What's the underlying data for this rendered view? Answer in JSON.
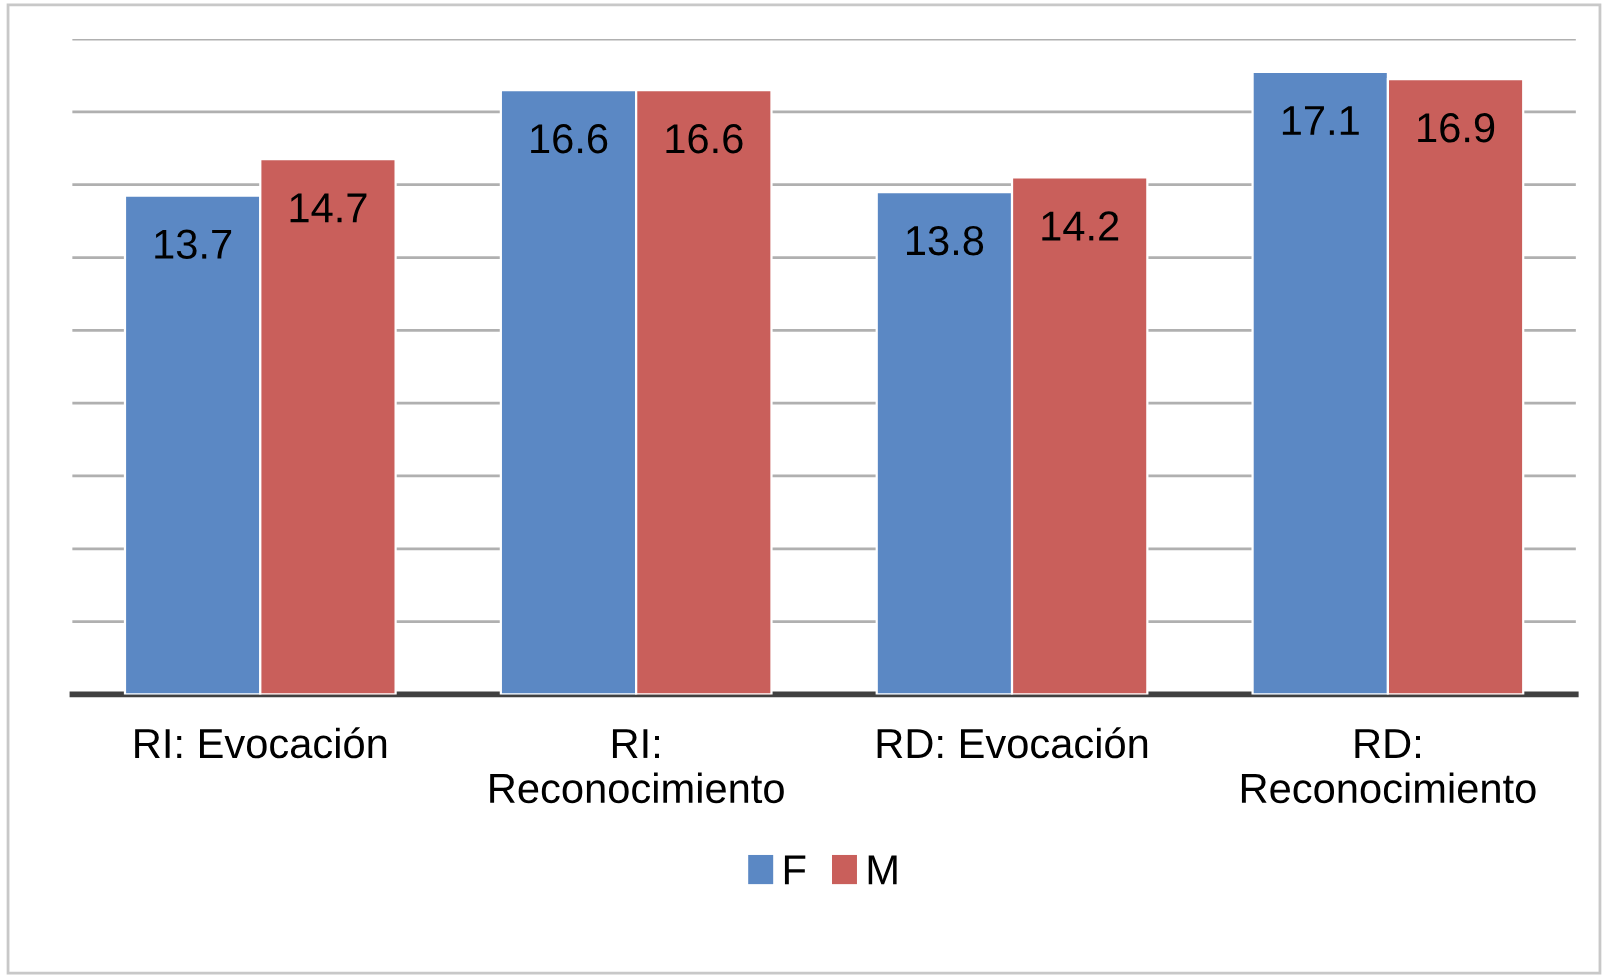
{
  "chart_data": {
    "type": "bar",
    "categories": [
      "RI: Evocación",
      "RI: Reconocimiento",
      "RD: Evocación",
      "RD: Reconocimiento"
    ],
    "series": [
      {
        "name": "F",
        "color": "#5b88c4",
        "values": [
          13.7,
          16.6,
          13.8,
          17.1
        ]
      },
      {
        "name": "M",
        "color": "#c95f5b",
        "values": [
          14.7,
          16.6,
          14.2,
          16.9
        ]
      }
    ],
    "ylim": [
      0,
      18
    ],
    "yticks": [
      {
        "value": 0,
        "label": null
      },
      {
        "value": 2,
        "label": null
      },
      {
        "value": 4,
        "label": null
      },
      {
        "value": 6,
        "label": null
      },
      {
        "value": 8,
        "label": null
      },
      {
        "value": 10,
        "label": null
      },
      {
        "value": 12,
        "label": null
      },
      {
        "value": 14,
        "label": null
      },
      {
        "value": 16,
        "label": null
      },
      {
        "value": 18,
        "label": null
      }
    ],
    "tick_labels": "x",
    "grid": "y",
    "legend": "bottom",
    "data_labels": true
  }
}
